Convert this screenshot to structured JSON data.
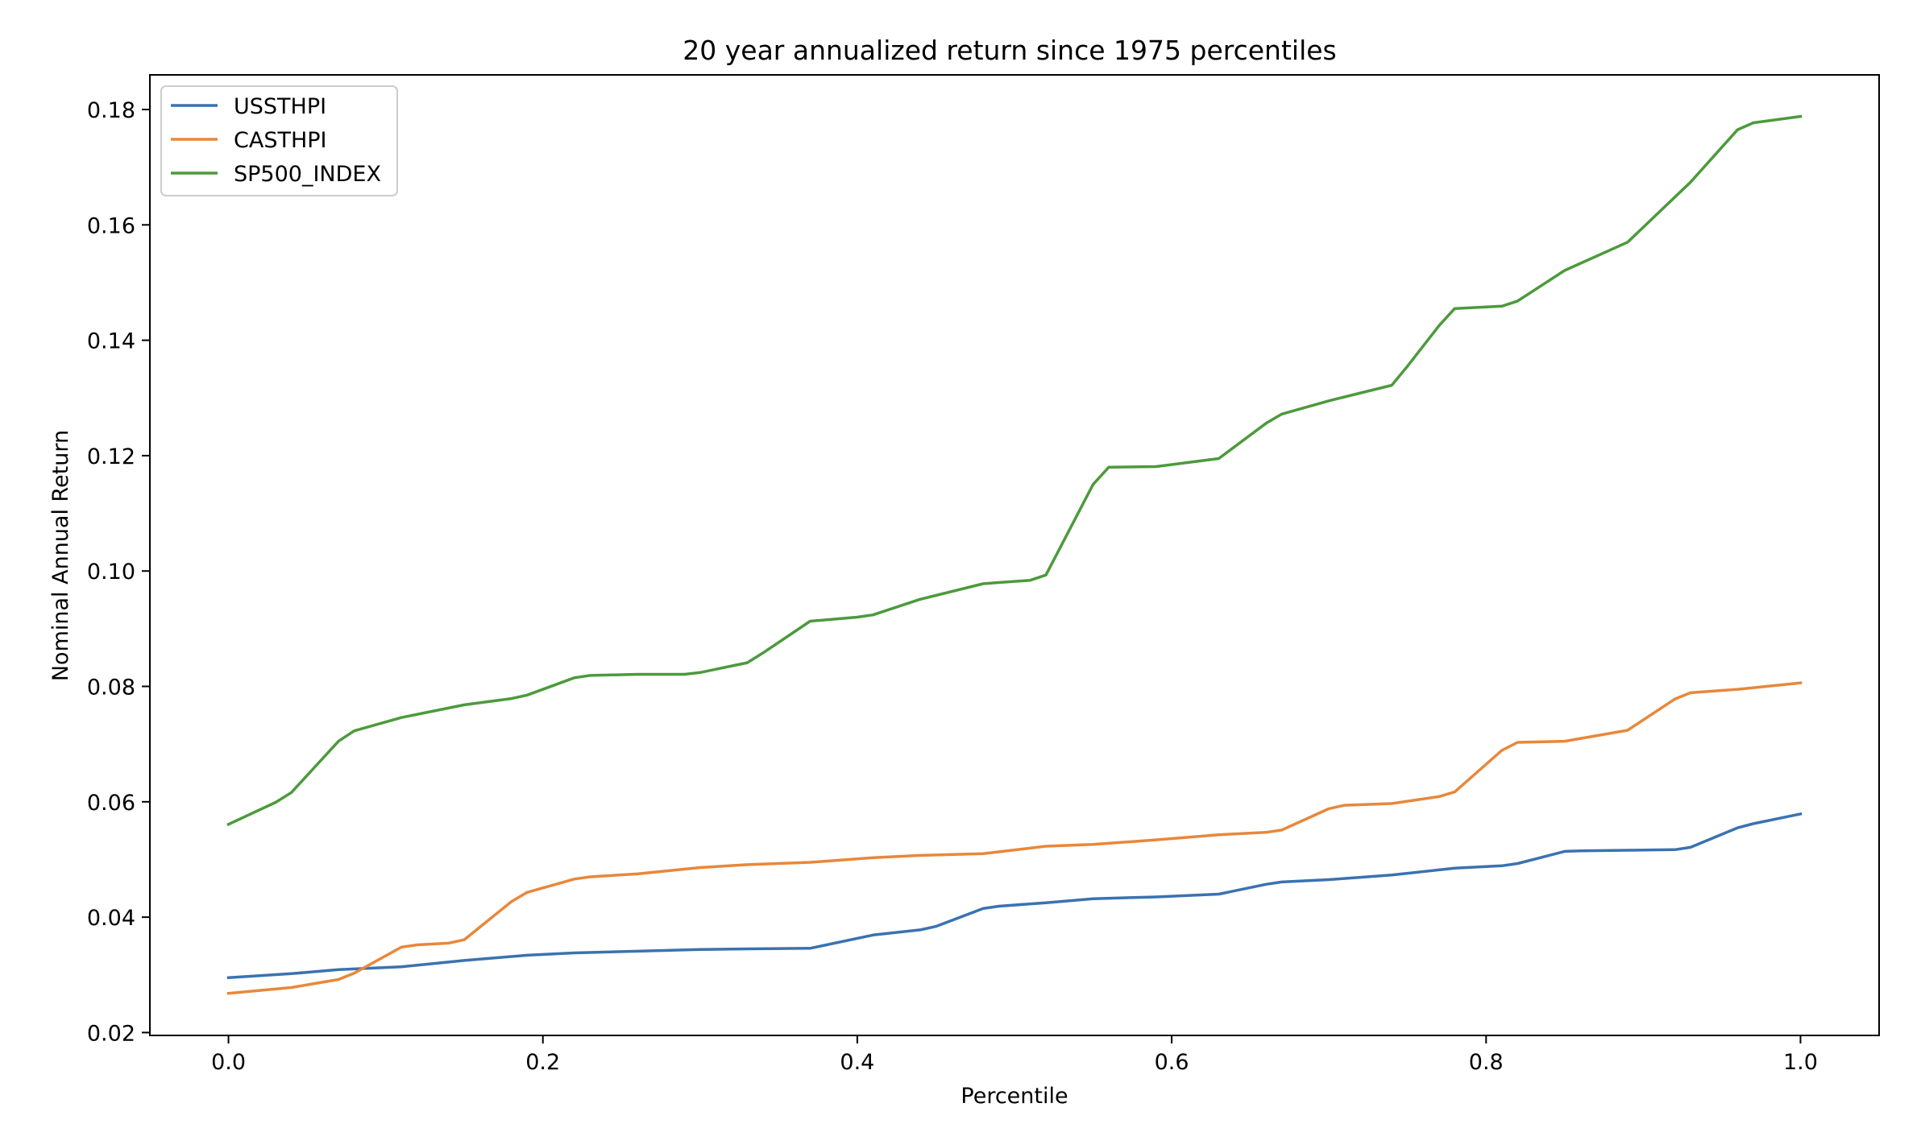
{
  "chart_data": {
    "type": "line",
    "title": "20 year annualized return since 1975 percentiles",
    "xlabel": "Percentile",
    "ylabel": "Nominal Annual Return",
    "xlim": [
      -0.05,
      1.05
    ],
    "ylim": [
      0.0195,
      0.186
    ],
    "xticks": [
      0.0,
      0.2,
      0.4,
      0.6,
      0.8,
      1.0
    ],
    "xtick_labels": [
      "0.0",
      "0.2",
      "0.4",
      "0.6",
      "0.8",
      "1.0"
    ],
    "yticks": [
      0.02,
      0.04,
      0.06,
      0.08,
      0.1,
      0.12,
      0.14,
      0.16,
      0.18
    ],
    "ytick_labels": [
      "0.02",
      "0.04",
      "0.06",
      "0.08",
      "0.10",
      "0.12",
      "0.14",
      "0.16",
      "0.18"
    ],
    "grid": false,
    "legend_position": "top-left",
    "series": [
      {
        "name": "USSTHPI",
        "color": "#3a72b0",
        "x": [
          0.0,
          0.04,
          0.07,
          0.11,
          0.15,
          0.19,
          0.22,
          0.26,
          0.3,
          0.33,
          0.37,
          0.41,
          0.44,
          0.45,
          0.48,
          0.49,
          0.52,
          0.55,
          0.59,
          0.63,
          0.66,
          0.67,
          0.7,
          0.74,
          0.77,
          0.78,
          0.81,
          0.82,
          0.85,
          0.86,
          0.89,
          0.92,
          0.93,
          0.96,
          0.97,
          1.0
        ],
        "y": [
          0.0295,
          0.0302,
          0.0309,
          0.0314,
          0.0325,
          0.0334,
          0.0338,
          0.0341,
          0.0344,
          0.0345,
          0.0346,
          0.0369,
          0.0378,
          0.0384,
          0.0415,
          0.0419,
          0.0425,
          0.0432,
          0.0435,
          0.044,
          0.0457,
          0.0461,
          0.0465,
          0.0473,
          0.0482,
          0.0485,
          0.0489,
          0.0493,
          0.0514,
          0.0515,
          0.0516,
          0.0517,
          0.0521,
          0.0555,
          0.0562,
          0.0579
        ]
      },
      {
        "name": "CASTHPI",
        "color": "#e8873a",
        "x": [
          0.0,
          0.04,
          0.07,
          0.08,
          0.11,
          0.12,
          0.14,
          0.15,
          0.18,
          0.19,
          0.22,
          0.23,
          0.26,
          0.3,
          0.33,
          0.37,
          0.41,
          0.44,
          0.48,
          0.52,
          0.55,
          0.59,
          0.63,
          0.66,
          0.67,
          0.7,
          0.71,
          0.74,
          0.77,
          0.78,
          0.81,
          0.82,
          0.85,
          0.89,
          0.92,
          0.93,
          0.96,
          1.0
        ],
        "y": [
          0.0268,
          0.0278,
          0.0292,
          0.0303,
          0.0348,
          0.0352,
          0.0355,
          0.0361,
          0.0427,
          0.0443,
          0.0466,
          0.047,
          0.0475,
          0.0486,
          0.0491,
          0.0495,
          0.0503,
          0.0507,
          0.051,
          0.0523,
          0.0526,
          0.0534,
          0.0543,
          0.0547,
          0.0551,
          0.0588,
          0.0594,
          0.0597,
          0.0609,
          0.0617,
          0.0689,
          0.0703,
          0.0705,
          0.0724,
          0.0778,
          0.0789,
          0.0795,
          0.0806
        ]
      },
      {
        "name": "SP500_INDEX",
        "color": "#4c9a3c",
        "x": [
          0.0,
          0.03,
          0.04,
          0.07,
          0.08,
          0.11,
          0.15,
          0.18,
          0.19,
          0.22,
          0.23,
          0.26,
          0.29,
          0.3,
          0.33,
          0.34,
          0.37,
          0.4,
          0.41,
          0.44,
          0.48,
          0.49,
          0.51,
          0.52,
          0.55,
          0.56,
          0.59,
          0.63,
          0.66,
          0.67,
          0.7,
          0.74,
          0.75,
          0.77,
          0.78,
          0.81,
          0.82,
          0.85,
          0.89,
          0.93,
          0.96,
          0.97,
          1.0
        ],
        "y": [
          0.0561,
          0.0599,
          0.0616,
          0.0705,
          0.0723,
          0.0746,
          0.0768,
          0.0779,
          0.0785,
          0.0815,
          0.0819,
          0.0821,
          0.0821,
          0.0824,
          0.0841,
          0.0858,
          0.0913,
          0.092,
          0.0924,
          0.0951,
          0.0978,
          0.098,
          0.0984,
          0.0993,
          0.115,
          0.118,
          0.1181,
          0.1195,
          0.1256,
          0.1272,
          0.1295,
          0.1322,
          0.1355,
          0.1425,
          0.1455,
          0.1459,
          0.1468,
          0.1521,
          0.157,
          0.1674,
          0.1765,
          0.1777,
          0.1788
        ]
      }
    ]
  }
}
